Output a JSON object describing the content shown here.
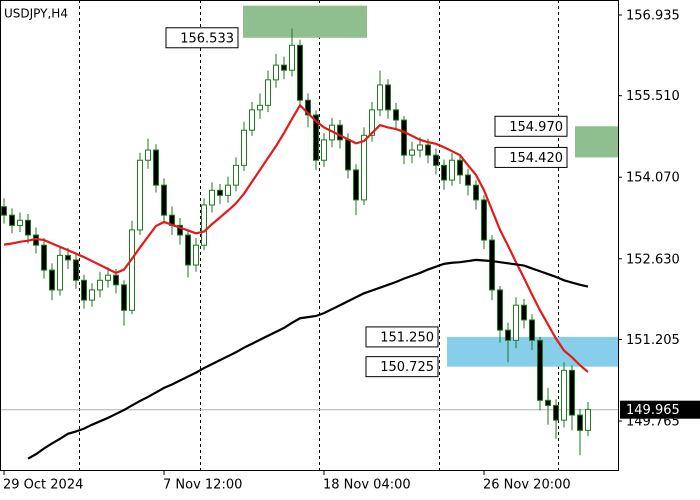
{
  "chart_data": {
    "type": "candlestick",
    "title": "USDJPY,H4",
    "categories": [
      "29 Oct 2024",
      null,
      null,
      null,
      null,
      null,
      null,
      null,
      null,
      null,
      null,
      null,
      null,
      null,
      null,
      null,
      null,
      null,
      null,
      null,
      "7 Nov 12:00",
      null,
      null,
      null,
      null,
      null,
      null,
      null,
      null,
      null,
      null,
      null,
      null,
      null,
      null,
      null,
      null,
      null,
      null,
      null,
      "18 Nov 04:00",
      null,
      null,
      null,
      null,
      null,
      null,
      null,
      null,
      null,
      null,
      null,
      null,
      null,
      null,
      null,
      null,
      null,
      null,
      null,
      "26 Nov 20:00",
      null,
      null,
      null,
      null,
      null,
      null,
      null,
      null,
      null,
      null,
      null,
      null,
      null
    ],
    "candles": [
      [
        153.55,
        153.7,
        153.25,
        153.4
      ],
      [
        153.4,
        153.52,
        153.08,
        153.22
      ],
      [
        153.22,
        153.45,
        153.1,
        153.31
      ],
      [
        153.31,
        153.42,
        152.9,
        153.05
      ],
      [
        153.05,
        153.18,
        152.72,
        152.87
      ],
      [
        152.87,
        153.0,
        152.28,
        152.43
      ],
      [
        152.43,
        152.55,
        151.9,
        152.08
      ],
      [
        152.08,
        152.85,
        151.98,
        152.69
      ],
      [
        152.69,
        152.82,
        152.45,
        152.61
      ],
      [
        152.61,
        152.7,
        152.1,
        152.25
      ],
      [
        152.25,
        152.35,
        151.75,
        151.9
      ],
      [
        151.9,
        152.2,
        151.78,
        152.08
      ],
      [
        152.08,
        152.4,
        151.95,
        152.25
      ],
      [
        152.25,
        152.48,
        152.12,
        152.34
      ],
      [
        152.34,
        152.45,
        152.02,
        152.17
      ],
      [
        152.17,
        152.25,
        151.45,
        151.72
      ],
      [
        151.72,
        153.3,
        151.65,
        153.14
      ],
      [
        153.14,
        154.5,
        153.05,
        154.37
      ],
      [
        154.37,
        154.75,
        154.22,
        154.55
      ],
      [
        154.55,
        154.65,
        153.8,
        153.93
      ],
      [
        153.93,
        154.05,
        153.25,
        153.4
      ],
      [
        153.4,
        153.55,
        153.05,
        153.22
      ],
      [
        153.22,
        153.35,
        152.88,
        153.05
      ],
      [
        153.05,
        153.15,
        152.3,
        152.52
      ],
      [
        152.52,
        153.0,
        152.4,
        152.87
      ],
      [
        152.87,
        153.7,
        152.78,
        153.58
      ],
      [
        153.58,
        153.98,
        153.45,
        153.84
      ],
      [
        153.84,
        153.95,
        153.6,
        153.75
      ],
      [
        153.75,
        154.08,
        153.62,
        153.93
      ],
      [
        153.93,
        154.42,
        153.82,
        154.28
      ],
      [
        154.28,
        155.05,
        154.18,
        154.9
      ],
      [
        154.9,
        155.4,
        154.8,
        155.26
      ],
      [
        155.26,
        155.55,
        155.1,
        155.34
      ],
      [
        155.34,
        155.95,
        155.22,
        155.79
      ],
      [
        155.79,
        156.25,
        155.65,
        156.05
      ],
      [
        156.05,
        156.2,
        155.8,
        155.96
      ],
      [
        155.96,
        156.7,
        155.85,
        156.4
      ],
      [
        156.4,
        156.5,
        155.3,
        155.43
      ],
      [
        155.43,
        155.55,
        154.95,
        155.17
      ],
      [
        155.17,
        155.25,
        154.2,
        154.37
      ],
      [
        154.37,
        154.85,
        154.25,
        154.73
      ],
      [
        154.73,
        155.12,
        154.6,
        154.99
      ],
      [
        154.99,
        155.08,
        154.58,
        154.73
      ],
      [
        154.73,
        154.85,
        154.05,
        154.2
      ],
      [
        154.2,
        154.3,
        153.4,
        153.67
      ],
      [
        153.67,
        154.95,
        153.58,
        154.81
      ],
      [
        154.81,
        155.4,
        154.7,
        155.26
      ],
      [
        155.26,
        155.95,
        155.15,
        155.7
      ],
      [
        155.7,
        155.8,
        155.1,
        155.26
      ],
      [
        155.26,
        155.38,
        154.92,
        155.08
      ],
      [
        155.08,
        155.15,
        154.3,
        154.46
      ],
      [
        154.46,
        154.7,
        154.32,
        154.55
      ],
      [
        154.55,
        154.78,
        154.42,
        154.64
      ],
      [
        154.64,
        154.75,
        154.32,
        154.46
      ],
      [
        154.46,
        154.58,
        154.12,
        154.28
      ],
      [
        154.28,
        154.38,
        153.85,
        154.02
      ],
      [
        154.02,
        154.5,
        153.92,
        154.37
      ],
      [
        154.37,
        154.45,
        153.95,
        154.11
      ],
      [
        154.11,
        154.22,
        153.75,
        153.93
      ],
      [
        153.93,
        154.02,
        153.5,
        153.67
      ],
      [
        153.67,
        153.75,
        152.8,
        152.96
      ],
      [
        152.96,
        153.05,
        151.9,
        152.08
      ],
      [
        152.08,
        152.15,
        151.15,
        151.37
      ],
      [
        151.37,
        151.5,
        150.8,
        151.19
      ],
      [
        151.19,
        151.95,
        151.05,
        151.81
      ],
      [
        151.81,
        151.92,
        151.4,
        151.55
      ],
      [
        151.55,
        151.65,
        151.02,
        151.19
      ],
      [
        151.19,
        151.25,
        149.95,
        150.13
      ],
      [
        150.13,
        150.35,
        149.7,
        150.04
      ],
      [
        150.04,
        150.15,
        149.45,
        149.78
      ],
      [
        149.78,
        150.8,
        149.65,
        150.66
      ],
      [
        150.66,
        150.75,
        149.6,
        149.87
      ],
      [
        149.87,
        149.98,
        149.16,
        149.6
      ],
      [
        149.6,
        150.1,
        149.5,
        149.97
      ]
    ],
    "bull_color": "#ffffff",
    "bear_color": "#000000",
    "wick_color": "#1f7a1f",
    "series": [
      {
        "color": "#e31a1c",
        "values": [
          152.88,
          152.9,
          152.93,
          152.95,
          152.98,
          152.96,
          152.9,
          152.84,
          152.78,
          152.72,
          152.66,
          152.59,
          152.52,
          152.45,
          152.38,
          152.44,
          152.63,
          152.83,
          153.02,
          153.21,
          153.28,
          153.23,
          153.18,
          153.13,
          153.08,
          153.11,
          153.24,
          153.36,
          153.48,
          153.61,
          153.78,
          153.99,
          154.2,
          154.41,
          154.62,
          154.85,
          155.1,
          155.34,
          155.2,
          155.06,
          154.95,
          154.88,
          154.81,
          154.74,
          154.67,
          154.71,
          154.85,
          154.99,
          154.95,
          154.92,
          154.87,
          154.8,
          154.73,
          154.69,
          154.66,
          154.6,
          154.53,
          154.46,
          154.28,
          154.11,
          153.84,
          153.49,
          153.14,
          152.86,
          152.57,
          152.29,
          152.0,
          151.72,
          151.47,
          151.22,
          151.01,
          150.89,
          150.75,
          150.63
        ]
      },
      {
        "color": "#000000",
        "values": [
          null,
          null,
          null,
          149.1,
          149.18,
          149.28,
          149.37,
          149.45,
          149.54,
          149.58,
          149.63,
          149.7,
          149.76,
          149.82,
          149.89,
          149.96,
          150.04,
          150.12,
          150.19,
          150.27,
          150.35,
          150.41,
          150.48,
          150.55,
          150.62,
          150.7,
          150.77,
          150.84,
          150.91,
          150.98,
          151.06,
          151.13,
          151.2,
          151.27,
          151.34,
          151.41,
          151.5,
          151.58,
          151.6,
          151.62,
          151.67,
          151.74,
          151.81,
          151.88,
          151.95,
          152.02,
          152.07,
          152.12,
          152.17,
          152.22,
          152.28,
          152.33,
          152.38,
          152.44,
          152.49,
          152.54,
          152.56,
          152.57,
          152.59,
          152.61,
          152.6,
          152.59,
          152.57,
          152.55,
          152.53,
          152.51,
          152.46,
          152.41,
          152.36,
          152.31,
          152.25,
          152.21,
          152.17,
          152.14
        ]
      }
    ],
    "ylim": [
      148.9,
      157.2
    ],
    "yticks": [
      156.935,
      {
        "value": 155.51,
        "label": "155.510"
      },
      {
        "value": 154.07,
        "label": "154.070"
      },
      {
        "value": 152.63,
        "label": "152.630"
      },
      151.205,
      149.765
    ],
    "last_price": 149.965,
    "zones": [
      {
        "high": 157.1,
        "low": 156.533,
        "color": "#8fbf8f"
      },
      {
        "high": {
          "value": 154.97,
          "label": "154.970"
        },
        "low": {
          "value": 154.42,
          "label": "154.420"
        },
        "color": "#8fbf8f"
      },
      {
        "high": {
          "value": 151.25,
          "label": "151.250"
        },
        "low": 150.725,
        "color": "#87ceeb"
      }
    ]
  }
}
